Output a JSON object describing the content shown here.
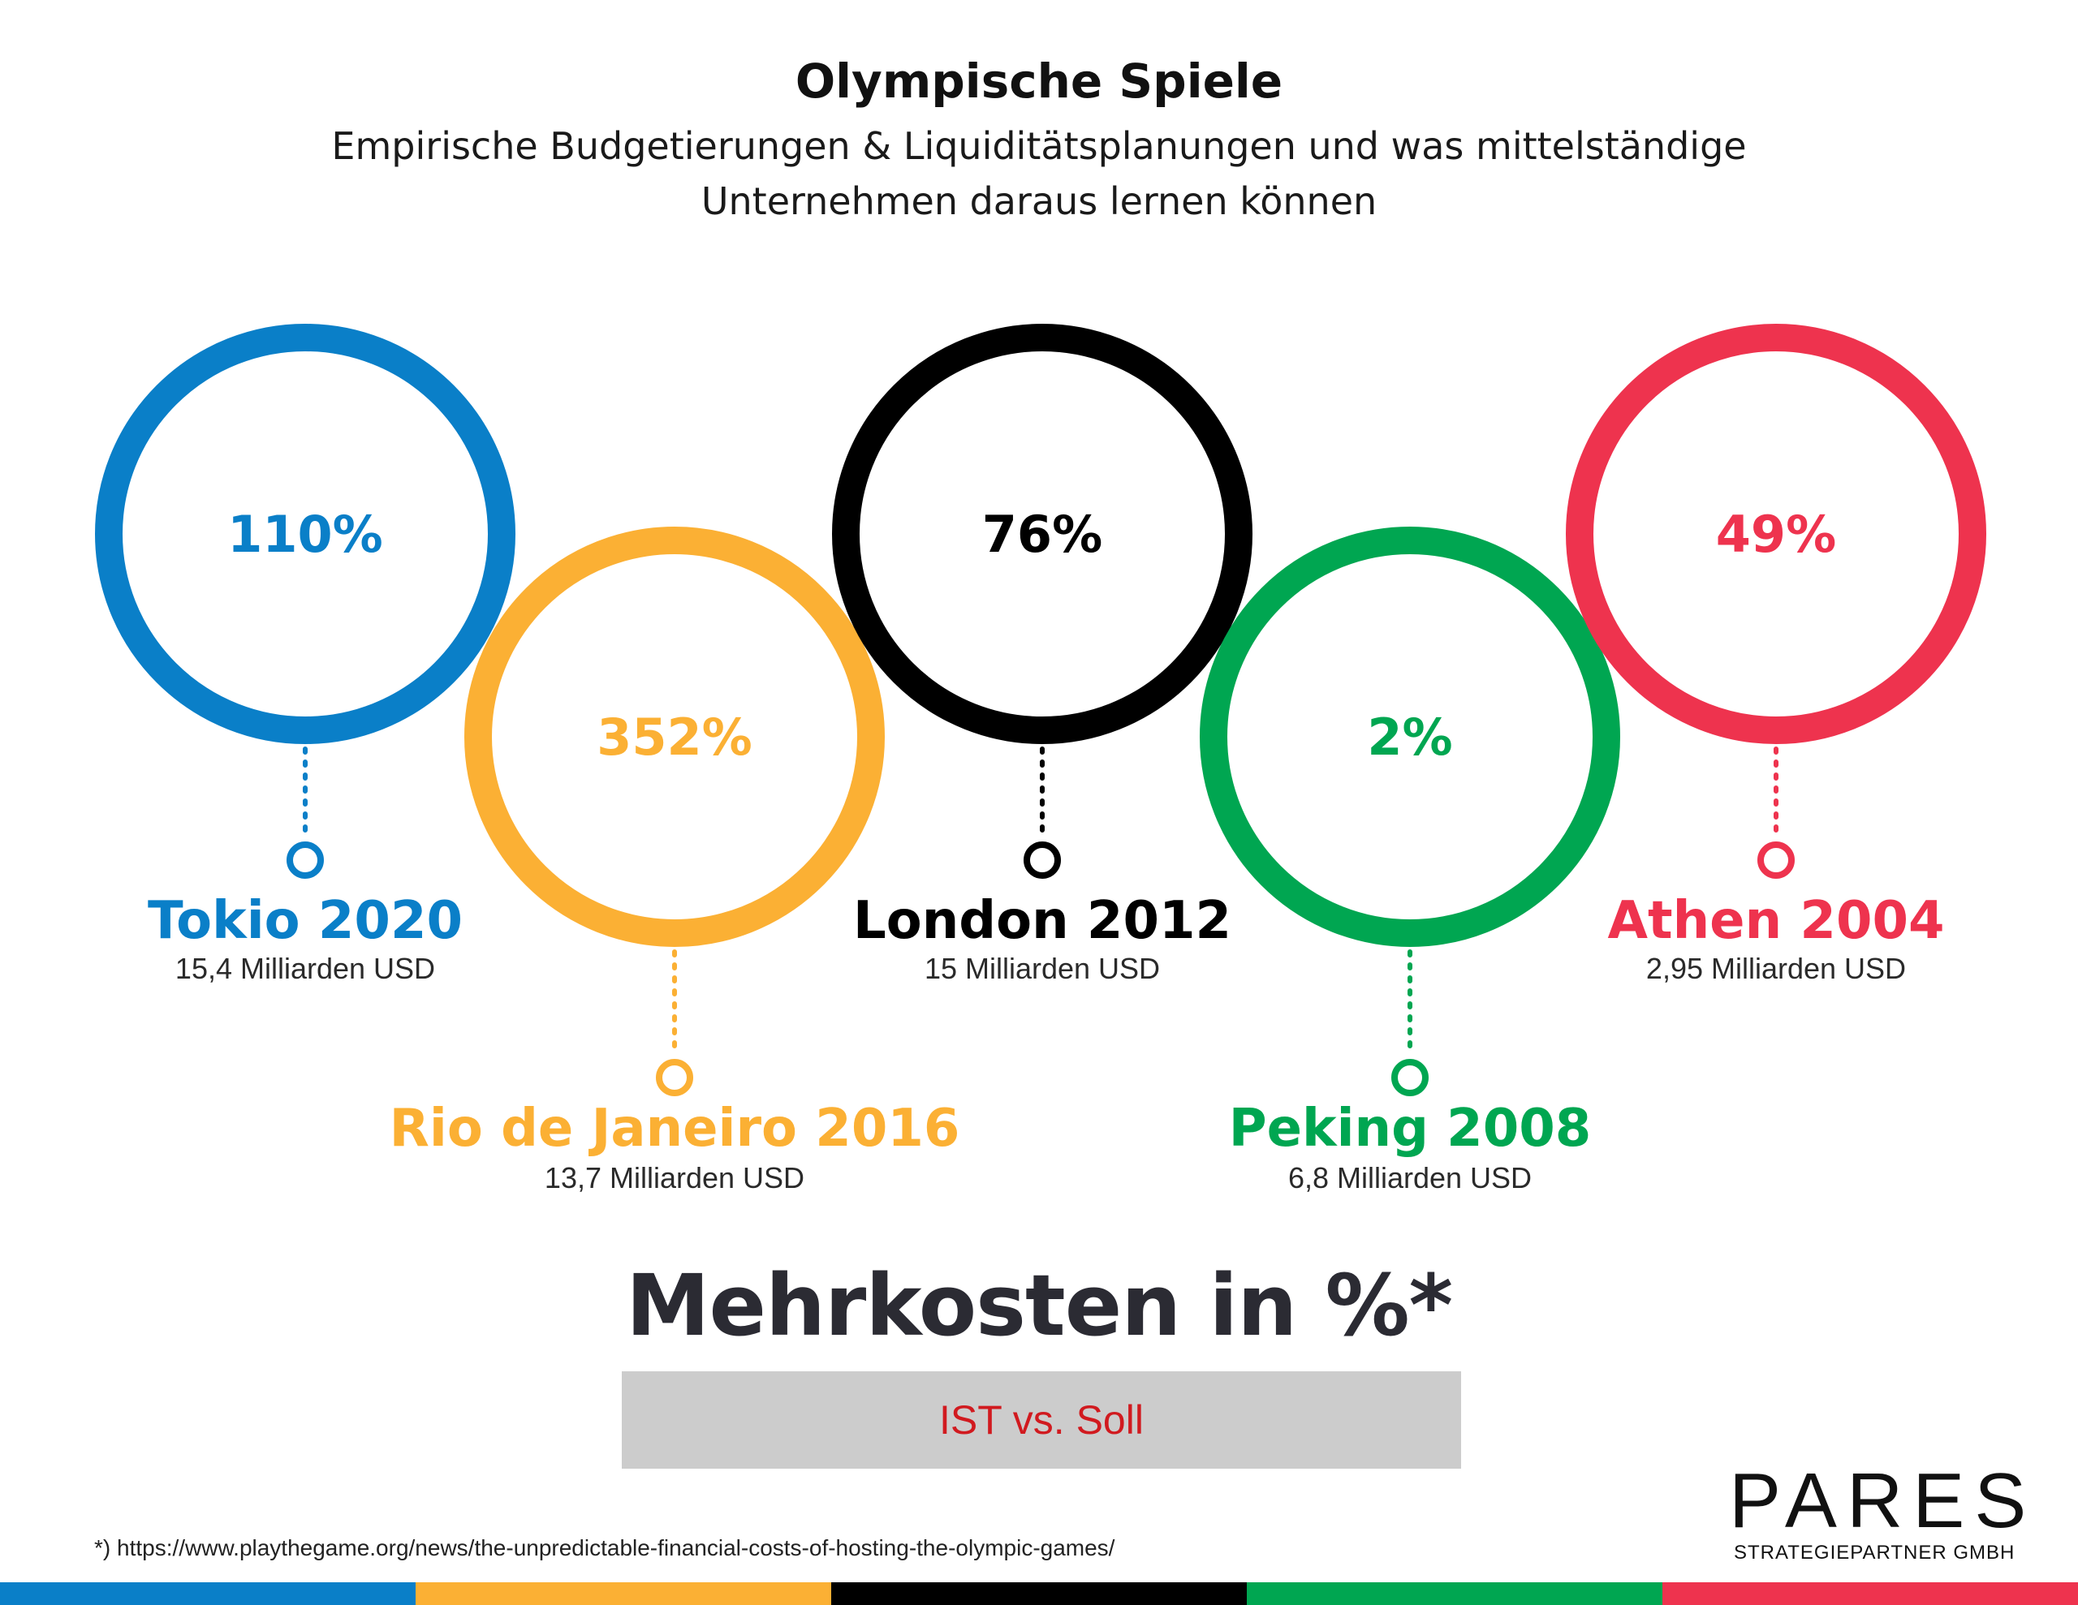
{
  "header": {
    "title": "Olympische Spiele",
    "subtitle": "Empirische Budgetierungen & Liquiditätsplanungen und was mittelständige Unternehmen daraus lernen können"
  },
  "chart_data": {
    "type": "bubble-infographic",
    "title": "Olympische Spiele",
    "subtitle": "Empirische Budgetierungen & Liquiditätsplanungen und was mittelständige Unternehmen daraus lernen können",
    "measure": "Mehrkosten in %*",
    "comparison": "IST vs. Soll",
    "items": [
      {
        "city": "Tokio 2020",
        "pct": "110%",
        "value": 110,
        "budget": "15,4 Milliarden USD",
        "color": "#0a7fc8"
      },
      {
        "city": "Rio de Janeiro 2016",
        "pct": "352%",
        "value": 352,
        "budget": "13,7  Milliarden USD",
        "color": "#fbb034"
      },
      {
        "city": "London 2012",
        "pct": "76%",
        "value": 76,
        "budget": "15 Milliarden USD",
        "color": "#000000"
      },
      {
        "city": "Peking 2008",
        "pct": "2%",
        "value": 2,
        "budget": "6,8 Milliarden USD",
        "color": "#00a651"
      },
      {
        "city": "Athen 2004",
        "pct": "49%",
        "value": 49,
        "budget": "2,95 Milliarden USD",
        "color": "#ee334e"
      }
    ]
  },
  "footer": {
    "headline": "Mehrkosten in %*",
    "comparison_label": "IST vs. Soll",
    "source": "*) https://www.playthegame.org/news/the-unpredictable-financial-costs-of-hosting-the-olympic-games/",
    "logo_text": "PARES",
    "logo_sub": "STRATEGIEPARTNER GMBH",
    "colors": [
      "#0a7fc8",
      "#fbb034",
      "#000000",
      "#00a651",
      "#ee334e"
    ]
  }
}
